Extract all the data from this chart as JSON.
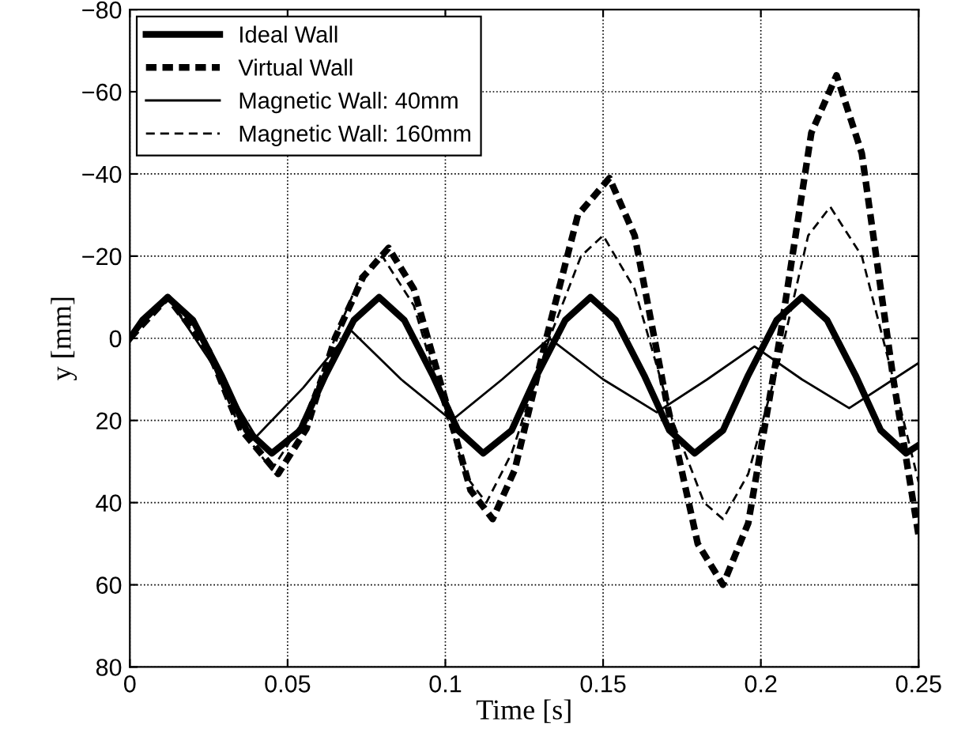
{
  "chart_data": {
    "type": "line",
    "xlabel": "Time [s]",
    "ylabel": "y [mm]",
    "xlim": [
      0,
      0.25
    ],
    "xticks": [
      0,
      0.05,
      0.1,
      0.15,
      0.2,
      0.25
    ],
    "ylim": [
      80,
      -80
    ],
    "yticks": [
      {
        "value": -80,
        "label": "−80"
      },
      {
        "value": -60,
        "label": "−60"
      },
      {
        "value": -40,
        "label": "−40"
      },
      {
        "value": -20,
        "label": "−20"
      },
      0,
      20,
      40,
      60,
      80
    ],
    "grid": true,
    "legend": "top left",
    "marker": "none",
    "series": [
      {
        "name": "Ideal Wall",
        "color": "#000000",
        "line_style": "solid",
        "x": [
          0,
          0.004,
          0.012,
          0.02,
          0.029,
          0.037,
          0.045,
          0.054,
          0.062,
          0.071,
          0.079,
          0.087,
          0.096,
          0.104,
          0.112,
          0.121,
          0.129,
          0.138,
          0.146,
          0.154,
          0.163,
          0.171,
          0.179,
          0.188,
          0.196,
          0.205,
          0.213,
          0.221,
          0.23,
          0.238,
          0.246,
          0.25
        ],
        "values": [
          0,
          -4.4,
          -10,
          -4.4,
          9,
          22.4,
          28,
          22.4,
          9,
          -4.4,
          -10,
          -4.4,
          9,
          22.4,
          28,
          22.4,
          9,
          -4.4,
          -10,
          -4.4,
          9,
          22.4,
          28,
          22.4,
          9,
          -4.4,
          -10,
          -4.4,
          9,
          22.4,
          28,
          26
        ]
      },
      {
        "name": "Virtual Wall",
        "color": "#000000",
        "line_style": "dashed",
        "x": [
          0,
          0.012,
          0.025,
          0.035,
          0.047,
          0.056,
          0.065,
          0.074,
          0.082,
          0.09,
          0.1,
          0.108,
          0.115,
          0.122,
          0.132,
          0.142,
          0.152,
          0.16,
          0.17,
          0.18,
          0.188,
          0.196,
          0.206,
          0.216,
          0.224,
          0.232,
          0.242,
          0.25
        ],
        "values": [
          0,
          -10,
          3,
          22,
          33,
          22,
          0,
          -15,
          -22,
          -12,
          15,
          37,
          44,
          32,
          0,
          -30,
          -39,
          -25,
          15,
          50,
          60,
          45,
          0,
          -50,
          -64,
          -45,
          10,
          48
        ]
      },
      {
        "name": "Magnetic Wall: 40mm",
        "color": "#000000",
        "line_style": "solid",
        "x": [
          0,
          0.012,
          0.025,
          0.04,
          0.055,
          0.07,
          0.086,
          0.102,
          0.118,
          0.133,
          0.15,
          0.167,
          0.183,
          0.198,
          0.213,
          0.228,
          0.25
        ],
        "values": [
          0,
          -10,
          5,
          24,
          12,
          -2,
          10,
          20,
          10,
          0,
          10,
          18,
          10,
          2,
          10,
          17,
          6
        ]
      },
      {
        "name": "Magnetic Wall: 160mm",
        "color": "#000000",
        "line_style": "dashed",
        "x": [
          0,
          0.012,
          0.025,
          0.035,
          0.045,
          0.055,
          0.065,
          0.073,
          0.08,
          0.09,
          0.1,
          0.107,
          0.113,
          0.121,
          0.133,
          0.143,
          0.15,
          0.16,
          0.172,
          0.182,
          0.188,
          0.196,
          0.206,
          0.215,
          0.222,
          0.232,
          0.242,
          0.25
        ],
        "values": [
          0,
          -10,
          4,
          22,
          32,
          20,
          0,
          -15,
          -20,
          -8,
          18,
          34,
          40,
          28,
          0,
          -20,
          -25,
          -12,
          20,
          40,
          44,
          33,
          5,
          -25,
          -32,
          -20,
          10,
          35
        ]
      }
    ]
  }
}
